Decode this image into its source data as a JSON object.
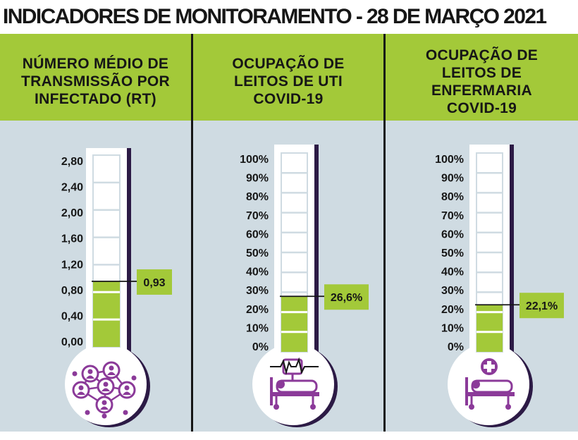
{
  "title": "INDICADORES DE MONITORAMENTO - 28 DE MARÇO 2021",
  "colors": {
    "header": "#a3c939",
    "fill": "#a3c939",
    "panel": "#cfdbe2",
    "icon": "#8b3a99",
    "dark": "#161616"
  },
  "icons": [
    "people-network-icon",
    "icu-bed-monitor-icon",
    "ward-bed-cross-icon"
  ],
  "chart_data": [
    {
      "type": "thermometer",
      "title": "NÚMERO MÉDIO DE TRANSMISSÃO POR INFECTADO (RT)",
      "tick_labels": [
        "2,80",
        "2,40",
        "2,00",
        "1,60",
        "1,20",
        "0,80",
        "0,40",
        "0,00"
      ],
      "ticks": [
        2.8,
        2.4,
        2.0,
        1.6,
        1.2,
        0.8,
        0.4,
        0.0
      ],
      "ylim": [
        0,
        2.8
      ],
      "value": 0.93,
      "value_label": "0,93"
    },
    {
      "type": "thermometer",
      "title": "OCUPAÇÃO DE LEITOS DE UTI COVID-19",
      "tick_labels": [
        "100%",
        "90%",
        "80%",
        "70%",
        "60%",
        "50%",
        "40%",
        "30%",
        "20%",
        "10%",
        "0%"
      ],
      "ticks": [
        100,
        90,
        80,
        70,
        60,
        50,
        40,
        30,
        20,
        10,
        0
      ],
      "ylim": [
        0,
        100
      ],
      "value": 26.6,
      "value_label": "26,6%"
    },
    {
      "type": "thermometer",
      "title": "OCUPAÇÃO DE LEITOS DE ENFERMARIA COVID-19",
      "tick_labels": [
        "100%",
        "90%",
        "80%",
        "70%",
        "60%",
        "50%",
        "40%",
        "30%",
        "20%",
        "10%",
        "0%"
      ],
      "ticks": [
        100,
        90,
        80,
        70,
        60,
        50,
        40,
        30,
        20,
        10,
        0
      ],
      "ylim": [
        0,
        100
      ],
      "value": 22.1,
      "value_label": "22,1%"
    }
  ]
}
